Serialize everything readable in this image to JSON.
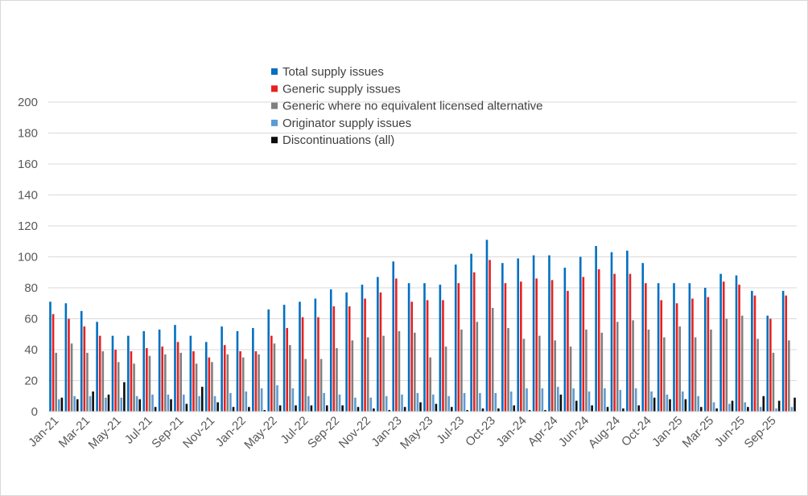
{
  "chart_data": {
    "type": "bar",
    "title": "",
    "xlabel": "",
    "ylabel": "",
    "ylim": [
      0,
      200
    ],
    "yticks": [
      0,
      20,
      40,
      60,
      80,
      100,
      120,
      140,
      160,
      180,
      200
    ],
    "grid": true,
    "legend_position": "top-center",
    "x_tick_labels": [
      "Jan-21",
      "Mar-21",
      "May-21",
      "Jul-21",
      "Sep-21",
      "Nov-21",
      "Jan-22",
      "May-22",
      "Jul-22",
      "Sep-22",
      "Nov-22",
      "Jan-23",
      "May-23",
      "Jul-23",
      "Oct-23",
      "Jan-24",
      "Apr-24",
      "Jun-24",
      "Aug-24",
      "Oct-24",
      "Jan-25",
      "Mar-25",
      "Jun-25",
      "Sep-25"
    ],
    "categories": [
      "Jan-21",
      "Feb-21",
      "Mar-21",
      "Apr-21",
      "May-21",
      "Jun-21",
      "Jul-21",
      "Aug-21",
      "Sep-21",
      "Oct-21",
      "Nov-21",
      "Dec-21",
      "Jan-22",
      "Mar-22",
      "May-22",
      "Jun-22",
      "Jul-22",
      "Aug-22",
      "Sep-22",
      "Oct-22",
      "Nov-22",
      "Dec-22",
      "Jan-23",
      "Mar-23",
      "May-23",
      "Jun-23",
      "Jul-23",
      "Aug-23",
      "Oct-23",
      "Nov-23",
      "Jan-24",
      "Feb-24",
      "Apr-24",
      "May-24",
      "Jun-24",
      "Jul-24",
      "Aug-24",
      "Sep-24",
      "Oct-24",
      "Nov-24",
      "Jan-25",
      "Feb-25",
      "Mar-25",
      "May-25",
      "Jun-25",
      "Jul-25",
      "Sep-25",
      "Oct-25"
    ],
    "series": [
      {
        "name": "Total supply issues",
        "color": "#0070C0",
        "values": [
          71,
          70,
          65,
          58,
          49,
          49,
          52,
          53,
          56,
          49,
          45,
          55,
          52,
          54,
          66,
          69,
          71,
          73,
          79,
          77,
          82,
          87,
          97,
          83,
          83,
          82,
          95,
          102,
          111,
          96,
          99,
          101,
          101,
          93,
          100,
          107,
          103,
          104,
          96,
          83,
          83,
          83,
          80,
          89,
          88,
          78,
          62,
          78
        ]
      },
      {
        "name": "Generic supply issues",
        "color": "#E8201F",
        "values": [
          63,
          60,
          55,
          49,
          40,
          39,
          41,
          42,
          45,
          39,
          35,
          43,
          39,
          39,
          49,
          54,
          61,
          61,
          68,
          68,
          73,
          77,
          86,
          71,
          72,
          72,
          83,
          90,
          98,
          83,
          84,
          86,
          85,
          78,
          87,
          92,
          89,
          89,
          83,
          72,
          70,
          73,
          74,
          84,
          82,
          75,
          60,
          75
        ]
      },
      {
        "name": "Generic where no equivalent licensed alternative",
        "color": "#7F7F7F",
        "values": [
          38,
          44,
          38,
          39,
          32,
          31,
          36,
          37,
          38,
          31,
          32,
          37,
          35,
          37,
          44,
          43,
          34,
          34,
          41,
          46,
          48,
          49,
          52,
          51,
          35,
          42,
          53,
          58,
          67,
          54,
          47,
          49,
          46,
          42,
          53,
          51,
          58,
          59,
          53,
          48,
          55,
          48,
          53,
          60,
          62,
          47,
          38,
          46
        ]
      },
      {
        "name": "Originator supply issues",
        "color": "#5B9BD5",
        "values": [
          8,
          10,
          10,
          9,
          9,
          10,
          11,
          11,
          11,
          10,
          10,
          12,
          13,
          15,
          17,
          15,
          10,
          12,
          11,
          9,
          9,
          10,
          11,
          12,
          11,
          10,
          12,
          12,
          12,
          13,
          15,
          15,
          16,
          15,
          13,
          15,
          14,
          15,
          13,
          11,
          13,
          10,
          6,
          5,
          6,
          3,
          2,
          3
        ]
      },
      {
        "name": "Discontinuations (all)",
        "color": "#0D0D0D",
        "values": [
          9,
          8,
          13,
          11,
          19,
          8,
          3,
          8,
          5,
          16,
          6,
          3,
          3,
          1,
          4,
          4,
          4,
          4,
          4,
          3,
          2,
          1,
          3,
          6,
          5,
          3,
          1,
          2,
          2,
          4,
          1,
          1,
          11,
          7,
          4,
          3,
          2,
          4,
          9,
          8,
          8,
          3,
          2,
          7,
          3,
          10,
          7,
          9
        ]
      }
    ]
  }
}
